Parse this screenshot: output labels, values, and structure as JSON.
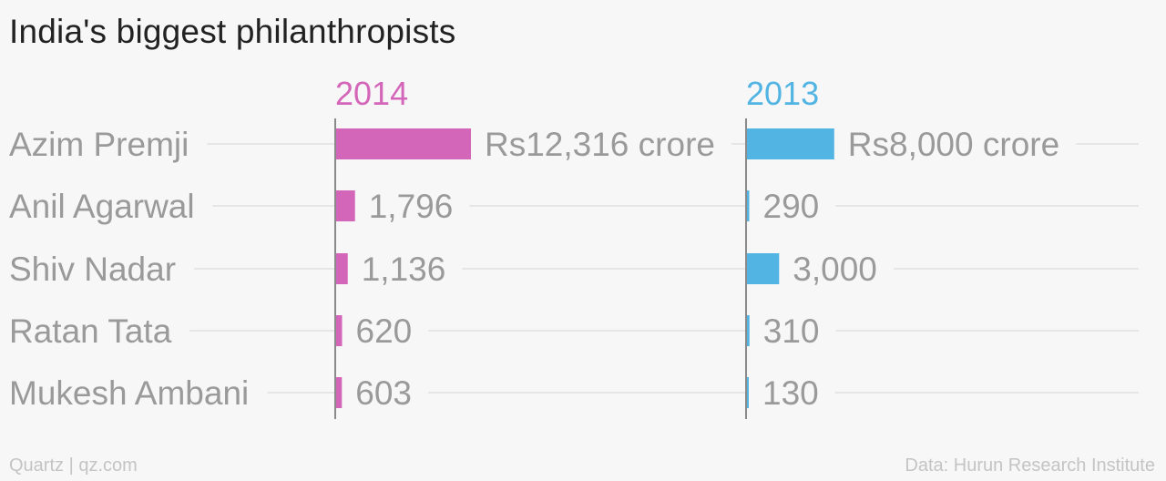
{
  "title": "India's biggest philanthropists",
  "footer": {
    "source": "Quartz | qz.com",
    "credit": "Data: Hurun Research Institute"
  },
  "chart_data": {
    "type": "bar",
    "orientation": "horizontal",
    "title": "India's biggest philanthropists",
    "categories": [
      "Azim Premji",
      "Anil Agarwal",
      "Shiv Nadar",
      "Ratan Tata",
      "Mukesh Ambani"
    ],
    "unit_prefix": "Rs",
    "unit_suffix": " crore",
    "series": [
      {
        "name": "2014",
        "color": "#d466ba",
        "values": [
          12316,
          1796,
          1136,
          620,
          603
        ],
        "labels": [
          "Rs12,316 crore",
          "1,796",
          "1,136",
          "620",
          "603"
        ]
      },
      {
        "name": "2013",
        "color": "#52b4e3",
        "values": [
          8000,
          290,
          3000,
          310,
          130
        ],
        "labels": [
          "Rs8,000 crore",
          "290",
          "3,000",
          "310",
          "130"
        ]
      }
    ],
    "xlim": [
      0,
      12316
    ],
    "grid": true,
    "legend": "panel headers"
  }
}
